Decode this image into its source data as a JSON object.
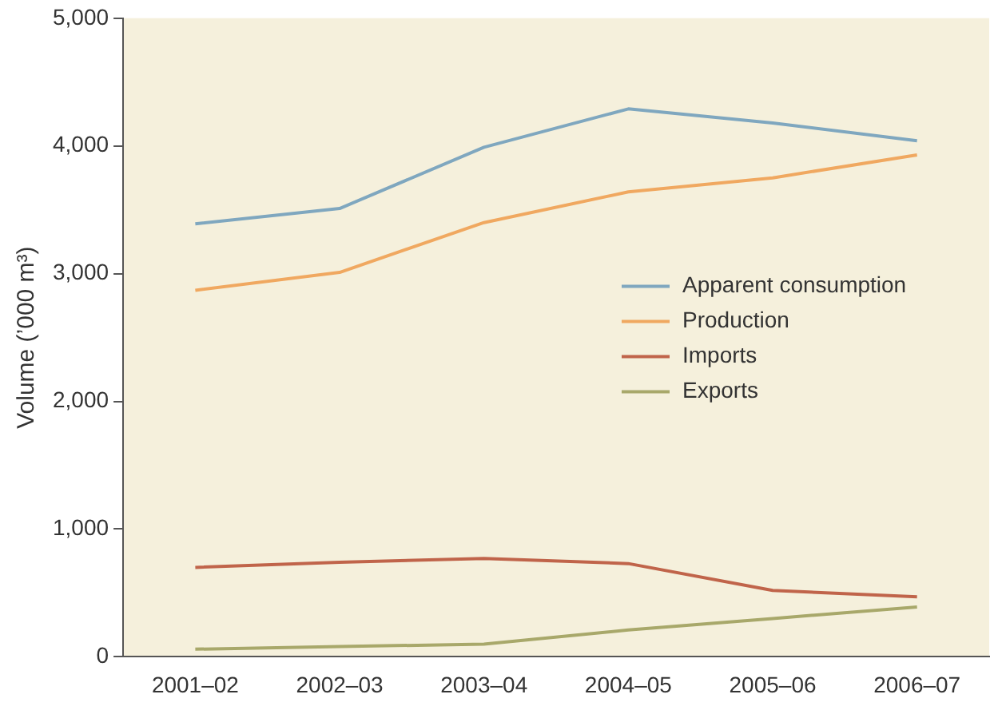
{
  "chart_data": {
    "type": "line",
    "ylabel": "Volume (’000 m³)",
    "categories": [
      "2001–02",
      "2002–03",
      "2003–04",
      "2004–05",
      "2005–06",
      "2006–07"
    ],
    "series": [
      {
        "name": "Apparent consumption",
        "color": "#7fa7bf",
        "values": [
          3390,
          3510,
          3990,
          4290,
          4180,
          4040
        ]
      },
      {
        "name": "Production",
        "color": "#f0a860",
        "values": [
          2870,
          3010,
          3400,
          3640,
          3750,
          3930
        ]
      },
      {
        "name": "Imports",
        "color": "#c0644a",
        "values": [
          700,
          740,
          770,
          730,
          520,
          470
        ]
      },
      {
        "name": "Exports",
        "color": "#a8a86a",
        "values": [
          60,
          80,
          100,
          210,
          300,
          390
        ]
      }
    ],
    "ylim": [
      0,
      5000
    ],
    "yticks": [
      0,
      {
        "value": 1000,
        "label": "1,000"
      },
      {
        "value": 2000,
        "label": "2,000"
      },
      {
        "value": 3000,
        "label": "3,000"
      },
      {
        "value": 4000,
        "label": "4,000"
      },
      {
        "value": 5000,
        "label": "5,000"
      }
    ],
    "grid": false,
    "legend": "right",
    "marker": "none",
    "line_style": "solid"
  }
}
